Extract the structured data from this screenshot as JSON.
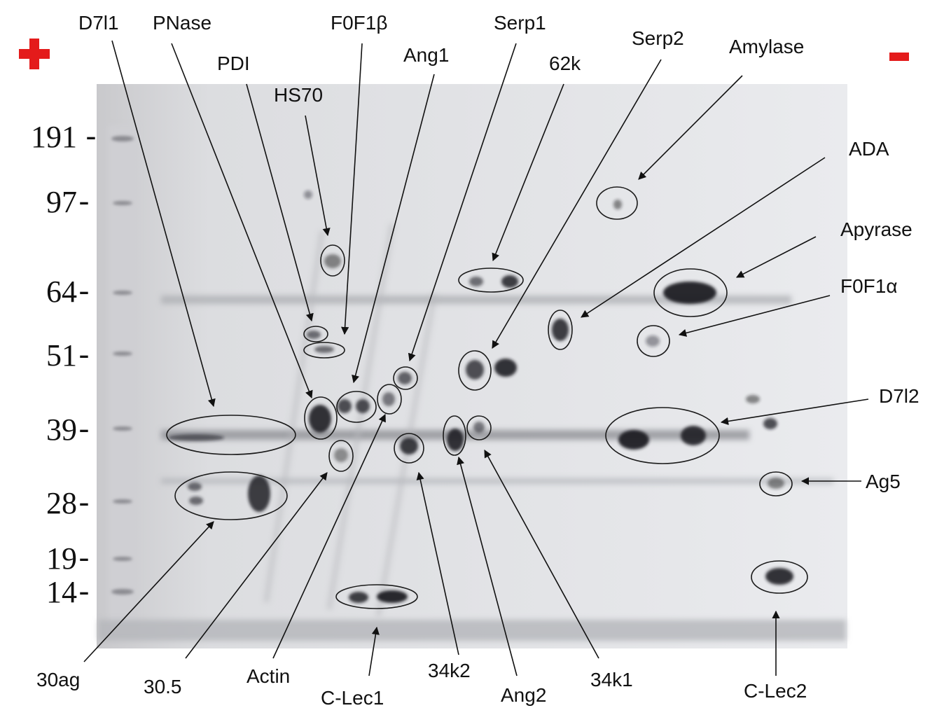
{
  "polarity": {
    "anode": "+",
    "cathode": "-",
    "color": "#e41b1b"
  },
  "molecular_weight_markers": [
    "191",
    "97",
    "64",
    "51",
    "39",
    "28",
    "19",
    "14"
  ],
  "marker_suffix": "-",
  "protein_labels": {
    "D7l1": "D7l1",
    "PNase": "PNase",
    "PDI": "PDI",
    "HS70": "HS70",
    "F0F1b": "F0F1β",
    "Ang1": "Ang1",
    "Serp1": "Serp1",
    "k62": "62k",
    "Serp2": "Serp2",
    "Amylase": "Amylase",
    "ADA": "ADA",
    "Apyrase": "Apyrase",
    "F0F1a": "F0F1α",
    "D7l2": "D7l2",
    "Ag5": "Ag5",
    "ag30": "30ag",
    "p305": "30.5",
    "Actin": "Actin",
    "CLec1": "C-Lec1",
    "k34k2": "34k2",
    "Ang2": "Ang2",
    "k34k1": "34k1",
    "CLec2": "C-Lec2"
  }
}
